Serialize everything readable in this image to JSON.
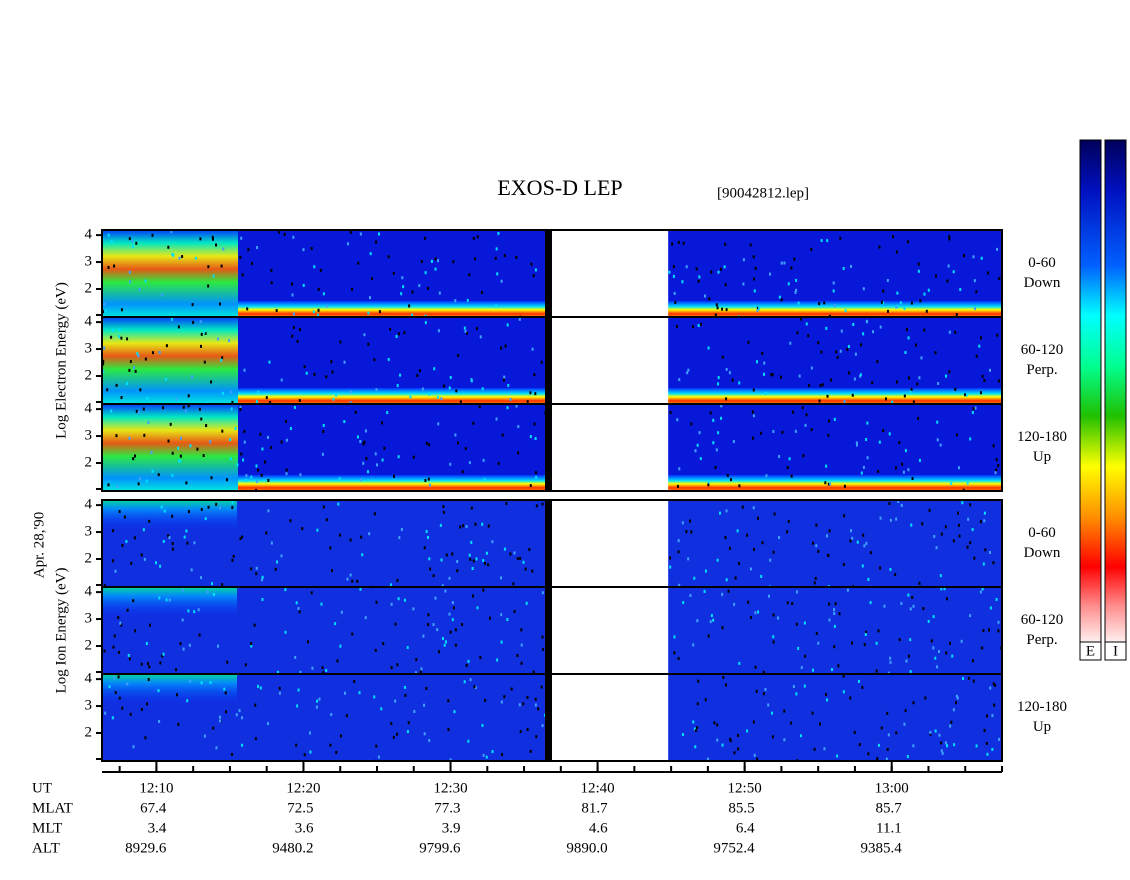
{
  "chart_data": {
    "type": "spectrogram",
    "title": "EXOS-D LEP",
    "file": "[90042812.lep]",
    "date_label": "Apr. 28,'90",
    "xlim": [
      6.3,
      67.5
    ],
    "xticks": [
      {
        "value": 10,
        "label": "12:10"
      },
      {
        "value": 20,
        "label": "12:20"
      },
      {
        "value": 30,
        "label": "12:30"
      },
      {
        "value": 40,
        "label": "12:40"
      },
      {
        "value": 50,
        "label": "12:50"
      },
      {
        "value": 60,
        "label": "13:00"
      }
    ],
    "data_gap": [
      36.9,
      44.8
    ],
    "groups": [
      {
        "ylabel": "Log Electron Energy (eV)",
        "species": "electron",
        "panels": [
          {
            "ylim": [
              0.96,
              4.19
            ],
            "yticks": [
              2,
              3,
              4
            ],
            "labels": [
              "0-60",
              "Down"
            ]
          },
          {
            "ylim": [
              0.96,
              4.19
            ],
            "yticks": [
              2,
              3,
              4
            ],
            "labels": [
              "60-120",
              "Perp."
            ]
          },
          {
            "ylim": [
              0.96,
              4.19
            ],
            "yticks": [
              2,
              3,
              4
            ],
            "labels": [
              "120-180",
              "Up"
            ]
          }
        ]
      },
      {
        "ylabel": "Log Ion Energy (eV)",
        "species": "ion",
        "panels": [
          {
            "ylim": [
              0.96,
              4.19
            ],
            "yticks": [
              2,
              3,
              4
            ],
            "labels": [
              "0-60",
              "Down"
            ]
          },
          {
            "ylim": [
              0.96,
              4.19
            ],
            "yticks": [
              2,
              3,
              4
            ],
            "labels": [
              "60-120",
              "Perp."
            ]
          },
          {
            "ylim": [
              0.96,
              4.19
            ],
            "yticks": [
              2,
              3,
              4
            ],
            "labels": [
              "120-180",
              "Up"
            ]
          }
        ]
      }
    ],
    "ephemeris": {
      "axis_name": "UT",
      "rows": [
        {
          "name": "MLAT",
          "values": [
            "67.4",
            "72.5",
            "77.3",
            "81.7",
            "85.5",
            "85.7"
          ]
        },
        {
          "name": "MLT",
          "values": [
            "3.4",
            "3.6",
            "3.9",
            "4.6",
            "6.4",
            "11.1"
          ]
        },
        {
          "name": "ALT",
          "values": [
            "8929.6",
            "9480.2",
            "9799.6",
            "9890.0",
            "9752.4",
            "9385.4"
          ]
        }
      ]
    },
    "colorbar_labels": [
      "E",
      "I"
    ]
  }
}
